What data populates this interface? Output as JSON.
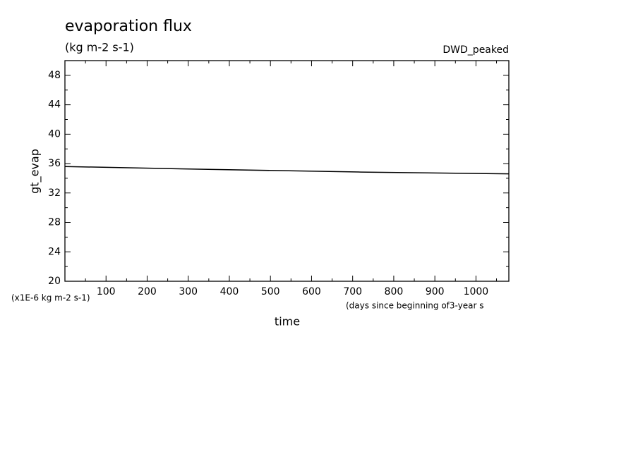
{
  "chart_data": {
    "type": "line",
    "title": "evaporation flux",
    "subtitle": "(kg m-2 s-1)",
    "annotation": "DWD_peaked",
    "y_label": "gt_evap",
    "y_units": "(x1E-6 kg m-2 s-1)",
    "x_label": "time",
    "x_units": "(days since beginning of3-year s",
    "x": [
      0,
      360,
      720,
      1080
    ],
    "series": [
      {
        "name": "gt_evap",
        "color": "#000000",
        "values": [
          35.6,
          35.2,
          34.85,
          34.6
        ]
      }
    ],
    "xlim": [
      0,
      1080
    ],
    "xticks": [
      100,
      200,
      300,
      400,
      500,
      600,
      700,
      800,
      900,
      1000
    ],
    "xminorticks": [
      50,
      150,
      250,
      350,
      450,
      550,
      650,
      750,
      850,
      950,
      1050
    ],
    "ylim": [
      20,
      50
    ],
    "yticks": [
      20,
      24,
      28,
      32,
      36,
      40,
      44,
      48
    ],
    "yminorticks": [
      22,
      26,
      30,
      34,
      38,
      42,
      46,
      50
    ]
  }
}
